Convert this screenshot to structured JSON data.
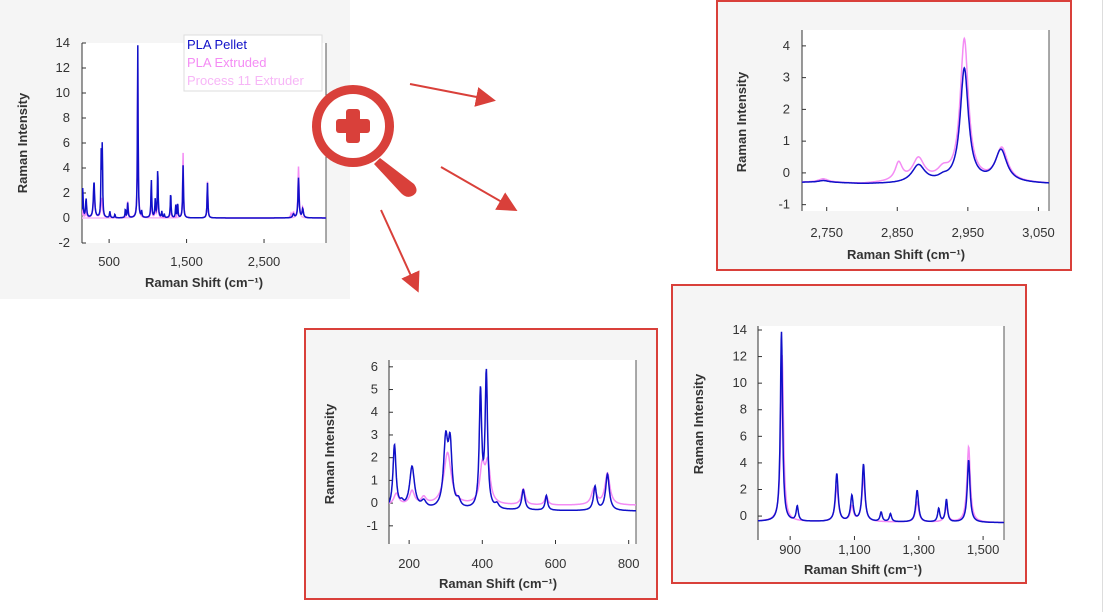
{
  "colors": {
    "pellet": "#1010c8",
    "extruded": "#f48cf4",
    "process": "#f7b6f7",
    "frame": "#d9403a",
    "icon": "#d9403a"
  },
  "icon": "zoom-in-magnifier-icon",
  "chart_data": [
    {
      "id": "overview",
      "type": "line",
      "xlabel": "Raman Shift (cm⁻¹)",
      "ylabel": "Raman Intensity",
      "xlim": [
        150,
        3300
      ],
      "ylim": [
        -2,
        14
      ],
      "xticks": [
        500,
        1500,
        2500
      ],
      "xticklabels": [
        "500",
        "1,500",
        "2,500"
      ],
      "yticks": [
        -2,
        0,
        2,
        4,
        6,
        8,
        10,
        12,
        14
      ],
      "yticklabels": [
        "-2",
        "0",
        "2",
        "4",
        "6",
        "8",
        "10",
        "12",
        "14"
      ],
      "legend": [
        "PLA Pellet",
        "PLA Extruded",
        "Process 11 Extruder"
      ],
      "legend_position": "top-right",
      "series": [
        {
          "name": "PLA Pellet",
          "color": "#1010c8",
          "baseline": [
            [
              150,
              0
            ],
            [
              3300,
              0
            ]
          ],
          "peaks": [
            [
              160,
              2.4,
              6
            ],
            [
              203,
              1.5,
              8
            ],
            [
              305,
              2.9,
              10
            ],
            [
              398,
              5.0,
              5
            ],
            [
              412,
              5.6,
              5
            ],
            [
              510,
              0.5,
              6
            ],
            [
              575,
              0.3,
              5
            ],
            [
              710,
              0.7,
              5
            ],
            [
              740,
              1.2,
              6
            ],
            [
              870,
              13.8,
              5
            ],
            [
              920,
              0.5,
              5
            ],
            [
              1045,
              3.0,
              6
            ],
            [
              1095,
              1.4,
              6
            ],
            [
              1128,
              3.9,
              6
            ],
            [
              1180,
              0.5,
              5
            ],
            [
              1212,
              0.3,
              5
            ],
            [
              1295,
              2.0,
              6
            ],
            [
              1360,
              1.0,
              5
            ],
            [
              1385,
              1.2,
              5
            ],
            [
              1455,
              4.2,
              6
            ],
            [
              1770,
              2.8,
              6
            ],
            [
              2880,
              0.3,
              12
            ],
            [
              2945,
              3.2,
              8
            ],
            [
              3000,
              0.7,
              10
            ]
          ]
        },
        {
          "name": "PLA Extruded",
          "color": "#f48cf4",
          "baseline": [
            [
              150,
              0
            ],
            [
              3300,
              0
            ]
          ],
          "peaks": [
            [
              160,
              0.5,
              8
            ],
            [
              203,
              0.6,
              8
            ],
            [
              305,
              2.5,
              10
            ],
            [
              405,
              1.6,
              12
            ],
            [
              510,
              0.4,
              6
            ],
            [
              575,
              0.2,
              5
            ],
            [
              740,
              1.3,
              8
            ],
            [
              870,
              12.0,
              6
            ],
            [
              1045,
              2.0,
              6
            ],
            [
              1095,
              0.8,
              6
            ],
            [
              1128,
              2.7,
              6
            ],
            [
              1295,
              1.0,
              6
            ],
            [
              1385,
              0.8,
              6
            ],
            [
              1455,
              5.2,
              6
            ],
            [
              1770,
              2.9,
              6
            ],
            [
              2850,
              0.3,
              8
            ],
            [
              2880,
              0.4,
              10
            ],
            [
              2945,
              4.1,
              8
            ],
            [
              3000,
              0.8,
              10
            ]
          ]
        },
        {
          "name": "Process 11 Extruder",
          "color": "#f7b6f7",
          "baseline": [
            [
              150,
              0
            ],
            [
              3300,
              0
            ]
          ],
          "peaks": [
            [
              870,
              10.0,
              6
            ],
            [
              1455,
              4.6,
              6
            ],
            [
              1770,
              2.5,
              6
            ],
            [
              2945,
              3.6,
              8
            ]
          ]
        }
      ]
    },
    {
      "id": "zoom-ch-stretch",
      "type": "line",
      "xlabel": "Raman Shift (cm⁻¹)",
      "ylabel": "Raman Intensity",
      "xlim": [
        2715,
        3065
      ],
      "ylim": [
        -1.2,
        4.5
      ],
      "xticks": [
        2750,
        2850,
        2950,
        3050
      ],
      "xticklabels": [
        "2,750",
        "2,850",
        "2,950",
        "3,050"
      ],
      "yticks": [
        -1,
        0,
        1,
        2,
        3,
        4
      ],
      "yticklabels": [
        "-1",
        "0",
        "1",
        "2",
        "3",
        "4"
      ],
      "series": [
        {
          "name": "PLA Pellet",
          "color": "#1010c8",
          "baseline": [
            [
              2715,
              -0.3
            ],
            [
              2750,
              -0.3
            ],
            [
              2800,
              -0.35
            ],
            [
              2850,
              -0.35
            ],
            [
              2950,
              -0.3
            ],
            [
              3065,
              -0.35
            ]
          ],
          "peaks": [
            [
              2745,
              0.05,
              8
            ],
            [
              2880,
              0.55,
              11
            ],
            [
              2915,
              0.1,
              8
            ],
            [
              2945,
              3.55,
              7
            ],
            [
              2997,
              1.0,
              10
            ]
          ]
        },
        {
          "name": "PLA Extruded",
          "color": "#f48cf4",
          "baseline": [
            [
              2715,
              -0.3
            ],
            [
              2750,
              -0.3
            ],
            [
              2800,
              -0.35
            ],
            [
              2850,
              -0.3
            ],
            [
              2950,
              -0.3
            ],
            [
              3065,
              -0.35
            ]
          ],
          "peaks": [
            [
              2745,
              0.1,
              8
            ],
            [
              2852,
              0.55,
              6
            ],
            [
              2880,
              0.7,
              10
            ],
            [
              2915,
              0.3,
              10
            ],
            [
              2945,
              4.45,
              7
            ],
            [
              2998,
              1.05,
              10
            ]
          ]
        }
      ]
    },
    {
      "id": "zoom-low",
      "type": "line",
      "xlabel": "Raman Shift (cm⁻¹)",
      "ylabel": "Raman Intensity",
      "xlim": [
        145,
        820
      ],
      "ylim": [
        -1.8,
        6.3
      ],
      "xticks": [
        200,
        400,
        600,
        800
      ],
      "xticklabels": [
        "200",
        "400",
        "600",
        "800"
      ],
      "yticks": [
        -1,
        0,
        1,
        2,
        3,
        4,
        5,
        6
      ],
      "yticklabels": [
        "-1",
        "0",
        "1",
        "2",
        "3",
        "4",
        "5",
        "6"
      ],
      "series": [
        {
          "name": "PLA Pellet",
          "color": "#1010c8",
          "baseline": [
            [
              145,
              -0.3
            ],
            [
              820,
              -0.35
            ]
          ],
          "peaks": [
            [
              160,
              2.8,
              5
            ],
            [
              180,
              0.2,
              6
            ],
            [
              208,
              1.85,
              8
            ],
            [
              240,
              0.3,
              8
            ],
            [
              300,
              2.9,
              7
            ],
            [
              312,
              2.6,
              6
            ],
            [
              335,
              0.3,
              6
            ],
            [
              395,
              5.1,
              4
            ],
            [
              411,
              5.9,
              4
            ],
            [
              440,
              0.2,
              6
            ],
            [
              512,
              0.9,
              5
            ],
            [
              575,
              0.65,
              4
            ],
            [
              708,
              1.05,
              5
            ],
            [
              742,
              1.6,
              6
            ]
          ]
        },
        {
          "name": "PLA Extruded",
          "color": "#f48cf4",
          "baseline": [
            [
              145,
              -0.1
            ],
            [
              820,
              -0.1
            ]
          ],
          "peaks": [
            [
              165,
              0.5,
              8
            ],
            [
              208,
              0.6,
              8
            ],
            [
              240,
              0.3,
              8
            ],
            [
              305,
              2.3,
              12
            ],
            [
              400,
              1.6,
              8
            ],
            [
              415,
              1.7,
              8
            ],
            [
              512,
              0.7,
              6
            ],
            [
              575,
              0.4,
              5
            ],
            [
              705,
              0.7,
              8
            ],
            [
              742,
              1.4,
              8
            ]
          ]
        }
      ]
    },
    {
      "id": "zoom-fingerprint",
      "type": "line",
      "xlabel": "Raman Shift (cm⁻¹)",
      "ylabel": "Raman Intensity",
      "xlim": [
        800,
        1565
      ],
      "ylim": [
        -1.8,
        14.3
      ],
      "xticks": [
        900,
        1100,
        1300,
        1500
      ],
      "xticklabels": [
        "900",
        "1,100",
        "1,300",
        "1,500"
      ],
      "yticks": [
        0,
        2,
        4,
        6,
        8,
        10,
        12,
        14
      ],
      "yticklabels": [
        "0",
        "2",
        "4",
        "6",
        "8",
        "10",
        "12",
        "14"
      ],
      "series": [
        {
          "name": "PLA Pellet",
          "color": "#1010c8",
          "baseline": [
            [
              800,
              -0.4
            ],
            [
              1565,
              -0.5
            ]
          ],
          "peaks": [
            [
              873,
              14.3,
              4
            ],
            [
              922,
              1.1,
              4
            ],
            [
              1045,
              3.6,
              5
            ],
            [
              1092,
              1.9,
              5
            ],
            [
              1128,
              4.3,
              5
            ],
            [
              1183,
              0.7,
              4
            ],
            [
              1212,
              0.6,
              4
            ],
            [
              1295,
              2.4,
              5
            ],
            [
              1362,
              1.0,
              4
            ],
            [
              1386,
              1.7,
              4
            ],
            [
              1455,
              4.7,
              5
            ]
          ]
        },
        {
          "name": "PLA Extruded",
          "color": "#f48cf4",
          "baseline": [
            [
              800,
              -0.4
            ],
            [
              1565,
              -0.5
            ]
          ],
          "peaks": [
            [
              875,
              12.6,
              5
            ],
            [
              1045,
              2.6,
              6
            ],
            [
              1092,
              1.1,
              6
            ],
            [
              1128,
              3.2,
              6
            ],
            [
              1295,
              1.5,
              6
            ],
            [
              1386,
              1.1,
              6
            ],
            [
              1455,
              5.7,
              6
            ]
          ]
        }
      ]
    }
  ]
}
